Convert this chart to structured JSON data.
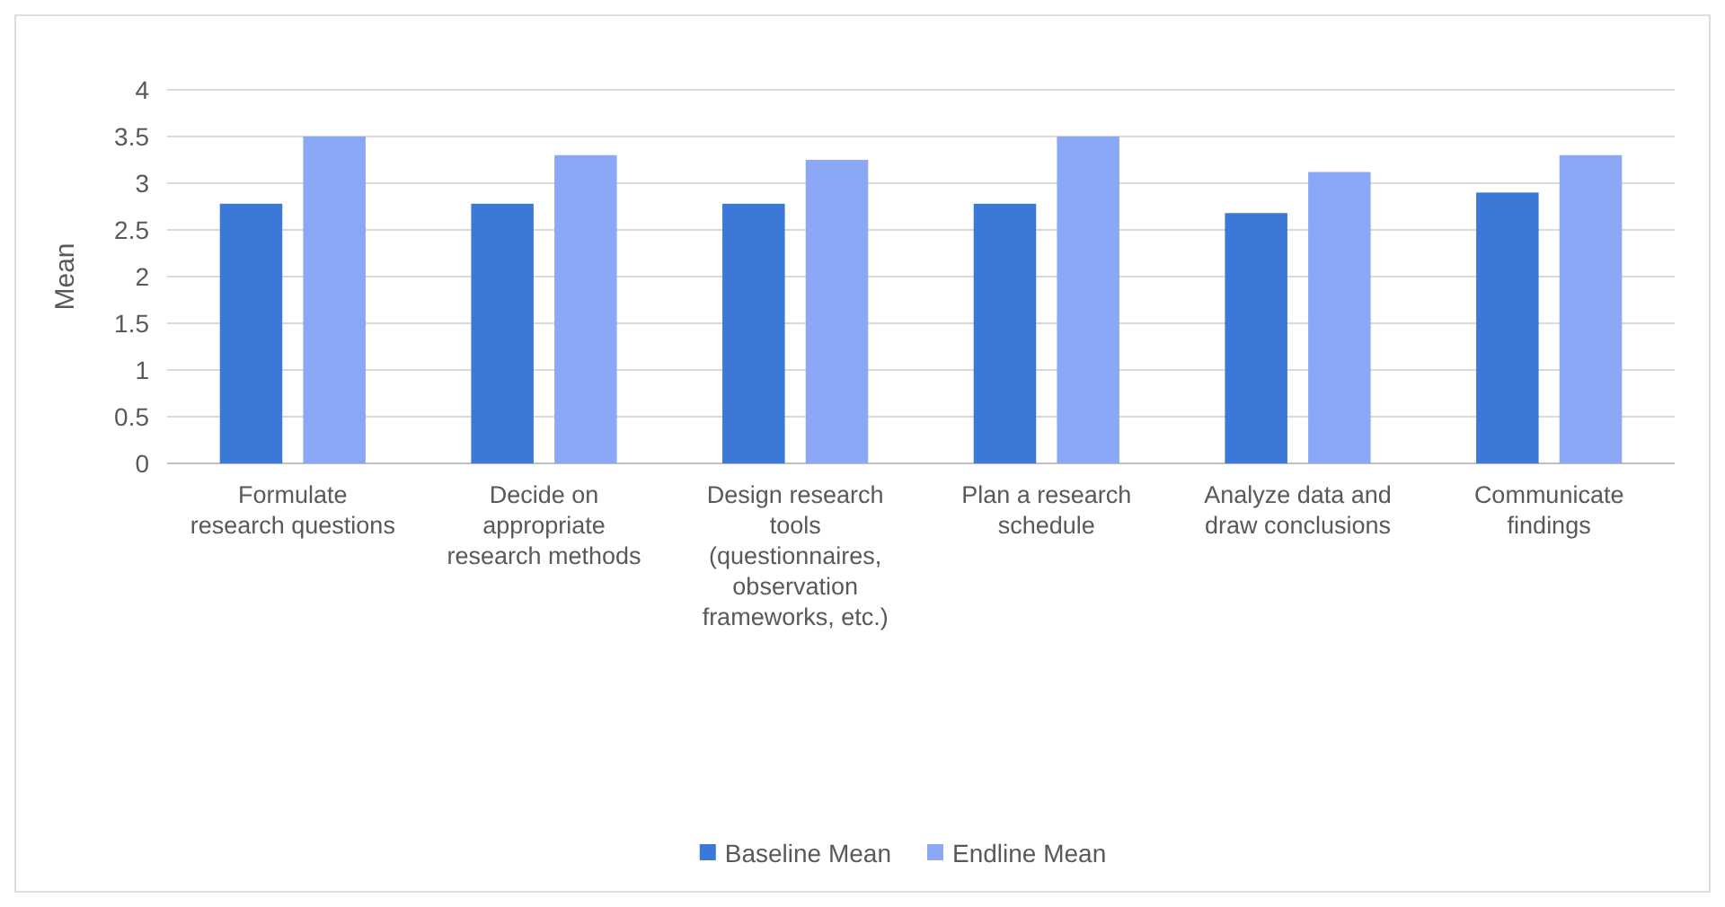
{
  "chart_data": {
    "type": "bar",
    "ylabel": "Mean",
    "categories": [
      "Formulate research questions",
      "Decide on appropriate research methods",
      "Design research tools (questionnaires, observation frameworks, etc.)",
      "Plan a research schedule",
      "Analyze data and draw conclusions",
      "Communicate findings"
    ],
    "series": [
      {
        "name": "Baseline Mean",
        "color": "#3c78d8",
        "values": [
          2.78,
          2.78,
          2.78,
          2.78,
          2.68,
          2.9
        ]
      },
      {
        "name": "Endline Mean",
        "color": "#8aa8f5",
        "values": [
          3.5,
          3.3,
          3.25,
          3.5,
          3.12,
          3.3
        ]
      }
    ],
    "ylim": [
      0,
      4
    ],
    "yticks": [
      0,
      0.5,
      1,
      1.5,
      2,
      2.5,
      3,
      3.5,
      4
    ],
    "grid": "y",
    "legend": "bottom"
  }
}
